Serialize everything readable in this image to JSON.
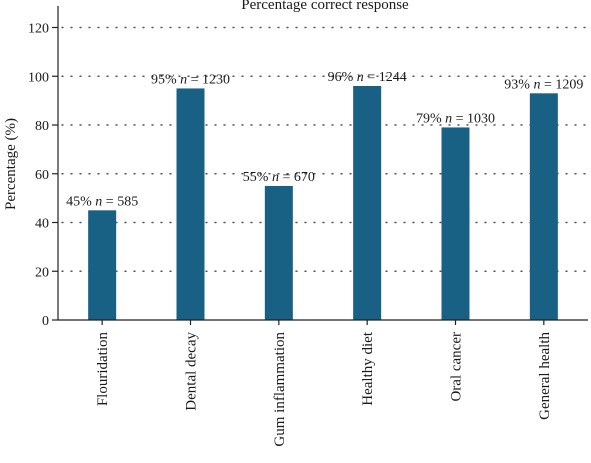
{
  "chart_data": {
    "type": "bar",
    "title": "Percentage correct response",
    "xlabel": "",
    "ylabel": "Percentage (%)",
    "ylim": [
      0,
      128
    ],
    "yticks": [
      0,
      20,
      40,
      60,
      80,
      100,
      120
    ],
    "grid": "horizontal dotted",
    "bar_color": "#186084",
    "categories": [
      "Flouridation",
      "Dental decay",
      "Gum inflammation",
      "Healthy diet",
      "Oral cancer",
      "General health"
    ],
    "values": [
      45,
      95,
      55,
      96,
      79,
      93
    ],
    "labels": [
      {
        "pct": "45%",
        "n": "n",
        "count": "= 585"
      },
      {
        "pct": "95%",
        "n": "n",
        "count": "= 1230"
      },
      {
        "pct": "55%",
        "n": "n",
        "count": "= 670"
      },
      {
        "pct": "96%",
        "n": "n",
        "count": "= 1244"
      },
      {
        "pct": "79%",
        "n": "n",
        "count": "= 1030"
      },
      {
        "pct": "93%",
        "n": "n",
        "count": "= 1209"
      }
    ]
  }
}
